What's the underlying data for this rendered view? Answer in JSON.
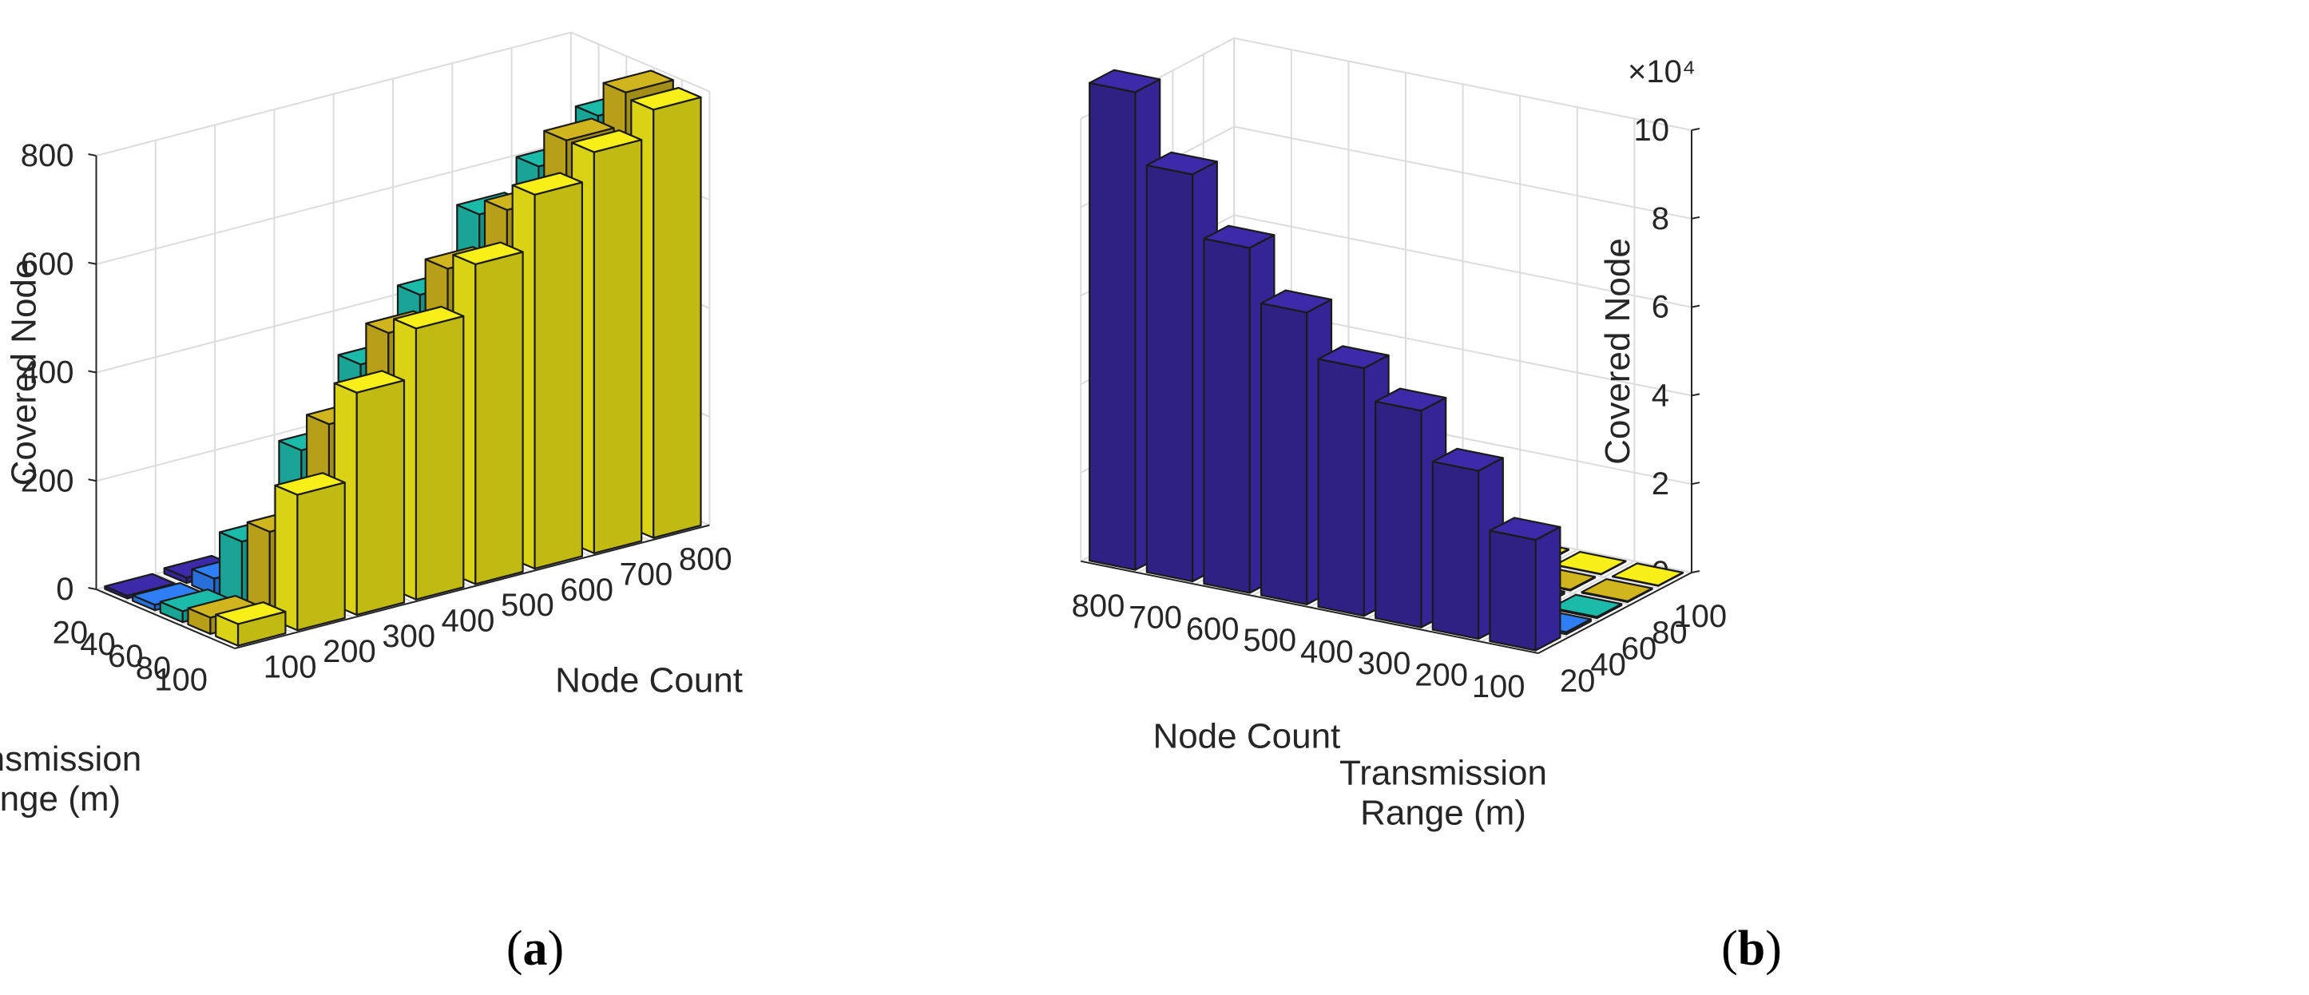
{
  "chart_data": [
    {
      "type": "bar3d",
      "caption_letter": "a",
      "xlabel": "Node Count",
      "ylabel_lines": [
        "Transmission",
        "Range (m)"
      ],
      "zlabel": "Covered Node",
      "z_exponent": "",
      "node_counts": [
        100,
        200,
        300,
        400,
        500,
        600,
        700,
        800
      ],
      "ranges": [
        20,
        40,
        60,
        80,
        100
      ],
      "zlim": [
        0,
        800
      ],
      "z_ticks": [
        0,
        200,
        400,
        600,
        800
      ],
      "z_tick_labels": [
        "0",
        "200",
        "400",
        "600",
        "800"
      ],
      "series": [
        {
          "range": 20,
          "color": "#3c2aa8",
          "values": [
            5,
            10,
            15,
            20,
            25,
            30,
            35,
            40
          ]
        },
        {
          "range": 40,
          "color": "#2e7ff5",
          "values": [
            10,
            30,
            40,
            110,
            250,
            340,
            470,
            560
          ]
        },
        {
          "range": 60,
          "color": "#1cbaa9",
          "values": [
            20,
            120,
            260,
            390,
            490,
            610,
            670,
            735
          ]
        },
        {
          "range": 80,
          "color": "#d0b51e",
          "values": [
            30,
            160,
            330,
            470,
            560,
            640,
            740,
            800
          ]
        },
        {
          "range": 100,
          "color": "#f8ef18",
          "values": [
            40,
            250,
            410,
            500,
            590,
            690,
            740,
            790
          ]
        }
      ]
    },
    {
      "type": "bar3d",
      "caption_letter": "b",
      "xlabel": "Node Count",
      "ylabel_lines": [
        "Transmission",
        "Range (m)"
      ],
      "zlabel": "Covered Node",
      "z_exponent": "×10⁴",
      "node_counts": [
        100,
        200,
        300,
        400,
        500,
        600,
        700,
        800
      ],
      "ranges": [
        20,
        40,
        60,
        80,
        100
      ],
      "zlim": [
        0,
        10
      ],
      "z_ticks": [
        0,
        2,
        4,
        6,
        8,
        10
      ],
      "z_tick_labels": [
        "0",
        "2",
        "4",
        "6",
        "8",
        "10"
      ],
      "series": [
        {
          "range": 20,
          "color": "#3c2aa8",
          "values": [
            2.5,
            3.8,
            4.9,
            5.6,
            6.6,
            7.8,
            9.2,
            10.8
          ]
        },
        {
          "range": 40,
          "color": "#2e7ff5",
          "values": [
            0.05,
            0.06,
            0.08,
            0.1,
            0.15,
            0.7,
            2.9,
            6.3
          ]
        },
        {
          "range": 60,
          "color": "#1cbaa9",
          "values": [
            0.03,
            0.05,
            0.05,
            0.06,
            0.08,
            0.1,
            0.15,
            2.6
          ]
        },
        {
          "range": 80,
          "color": "#d0b51e",
          "values": [
            0.02,
            0.02,
            0.03,
            0.04,
            0.05,
            0.06,
            0.08,
            0.35
          ]
        },
        {
          "range": 100,
          "color": "#f8ef18",
          "values": [
            0.01,
            0.01,
            0.02,
            0.02,
            0.02,
            0.03,
            0.03,
            0.05
          ]
        }
      ]
    }
  ]
}
